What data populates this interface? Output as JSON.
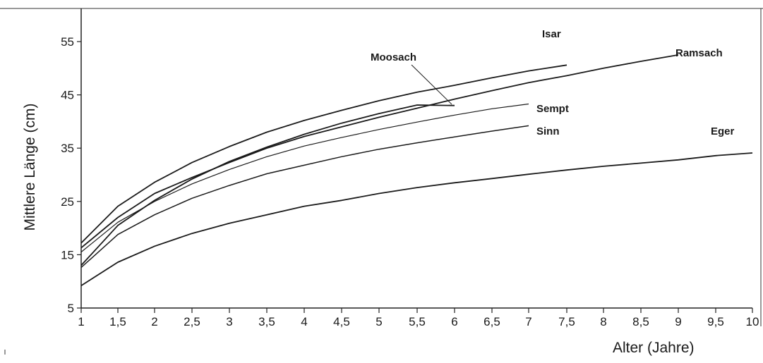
{
  "chart_data": {
    "type": "line",
    "title": "",
    "ylabel": "Mittlere Länge (cm)",
    "xlabel": "Alter (Jahre)",
    "ylim": [
      5,
      60
    ],
    "yticks": [
      "5",
      "15",
      "25",
      "35",
      "45",
      "55"
    ],
    "xticks": [
      "1",
      "1,5",
      "2",
      "2,5",
      "3",
      "3,5",
      "4",
      "4,5",
      "5",
      "5,5",
      "6",
      "6,5",
      "7",
      "7,5",
      "8",
      "8,5",
      "9",
      "9,5",
      "10"
    ],
    "xaxis_note": "x axis is not linear; tick labels are ages in years",
    "grid": false,
    "legend": "series labels placed at line ends",
    "line_color": "#1a1a1a",
    "series": [
      {
        "name": "Isar",
        "x": [
          1,
          1.5,
          2,
          2.5,
          3,
          3.5,
          4,
          4.5,
          5,
          5.5,
          6,
          6.5,
          7,
          7.5
        ],
        "values": [
          17.2,
          24.1,
          28.6,
          32.3,
          35.3,
          38,
          40.2,
          42.1,
          43.9,
          45.5,
          46.8,
          48.2,
          49.5,
          50.6
        ]
      },
      {
        "name": "Moosach",
        "x": [
          1,
          1.5,
          2,
          2.5,
          3,
          3.5,
          4,
          4.5,
          5,
          5.5,
          6
        ],
        "values": [
          13,
          20.5,
          25.2,
          29.2,
          32.5,
          35.2,
          37.6,
          39.7,
          41.5,
          43.1,
          43
        ]
      },
      {
        "name": "Ramsach",
        "x": [
          1,
          1.5,
          2,
          2.5,
          3,
          3.5,
          4,
          4.5,
          5,
          5.5,
          6,
          6.5,
          7,
          7.5,
          8,
          8.5,
          9
        ],
        "values": [
          16.3,
          22,
          26.5,
          29.5,
          32.3,
          35,
          37.2,
          39,
          40.8,
          42.5,
          44.2,
          45.8,
          47.3,
          48.6,
          50,
          51.3,
          52.5
        ]
      },
      {
        "name": "Sempt",
        "x": [
          1,
          1.5,
          2,
          2.5,
          3,
          3.5,
          4,
          4.5,
          5,
          5.5,
          6,
          6.5,
          7
        ],
        "values": [
          15.5,
          21.1,
          25,
          28.3,
          31,
          33.4,
          35.4,
          37,
          38.5,
          39.9,
          41.2,
          42.4,
          43.3
        ]
      },
      {
        "name": "Sinn",
        "x": [
          1,
          1.5,
          2,
          2.5,
          3,
          3.5,
          4,
          4.5,
          5,
          5.5,
          6,
          6.5,
          7
        ],
        "values": [
          12.6,
          18.8,
          22.5,
          25.6,
          28,
          30.2,
          31.8,
          33.4,
          34.8,
          36,
          37.1,
          38.2,
          39.2
        ]
      },
      {
        "name": "Eger",
        "x": [
          1,
          1.5,
          2,
          2.5,
          3,
          3.5,
          4,
          4.5,
          5,
          5.5,
          6,
          6.5,
          7,
          7.5,
          8,
          8.5,
          9,
          9.5,
          10
        ],
        "values": [
          9.2,
          13.6,
          16.6,
          19,
          20.9,
          22.5,
          24.1,
          25.2,
          26.5,
          27.6,
          28.5,
          29.3,
          30.1,
          30.9,
          31.6,
          32.2,
          32.8,
          33.6,
          34.1
        ]
      }
    ]
  }
}
